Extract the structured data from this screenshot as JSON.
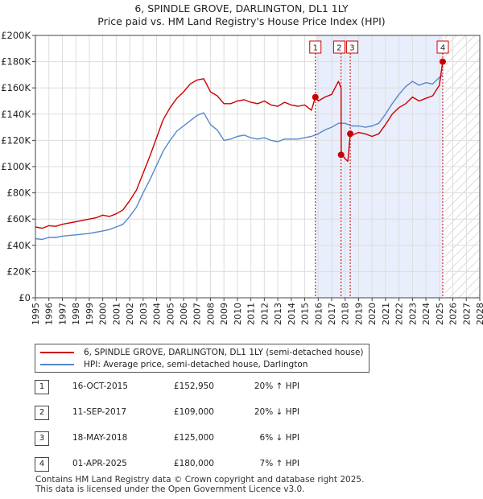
{
  "title_line1": "6, SPINDLE GROVE, DARLINGTON, DL1 1LY",
  "title_line2": "Price paid vs. HM Land Registry's House Price Index (HPI)",
  "chart_data": {
    "type": "line",
    "xlabel": "",
    "ylabel": "",
    "xlim": [
      1995,
      2028
    ],
    "ylim": [
      0,
      200000
    ],
    "y_ticks": [
      0,
      20000,
      40000,
      60000,
      80000,
      100000,
      120000,
      140000,
      160000,
      180000,
      200000
    ],
    "y_tick_labels": [
      "£0",
      "£20K",
      "£40K",
      "£60K",
      "£80K",
      "£100K",
      "£120K",
      "£140K",
      "£160K",
      "£180K",
      "£200K"
    ],
    "x_ticks": [
      1995,
      1996,
      1997,
      1998,
      1999,
      2000,
      2001,
      2002,
      2003,
      2004,
      2005,
      2006,
      2007,
      2008,
      2009,
      2010,
      2011,
      2012,
      2013,
      2014,
      2015,
      2016,
      2017,
      2018,
      2019,
      2020,
      2021,
      2022,
      2023,
      2024,
      2025,
      2026,
      2027,
      2028
    ],
    "x_tick_labels": [
      "1995",
      "1996",
      "1997",
      "1998",
      "1999",
      "2000",
      "2001",
      "2002",
      "2003",
      "2004",
      "2005",
      "2006",
      "2007",
      "2008",
      "2009",
      "2010",
      "2011",
      "2012",
      "2013",
      "2014",
      "2015",
      "2016",
      "2017",
      "2018",
      "2019",
      "2020",
      "2021",
      "2022",
      "2023",
      "2024",
      "2025",
      "2026",
      "2027",
      "2028"
    ],
    "grid": true,
    "shaded_period": [
      2015.79,
      2025.25
    ],
    "future_hatch_from": 2025.4,
    "series": [
      {
        "name": "6, SPINDLE GROVE, DARLINGTON, DL1 1LY (semi-detached house)",
        "color": "#cc0000",
        "x": [
          1995.0,
          1995.5,
          1996.0,
          1996.5,
          1997.0,
          1997.5,
          1998.0,
          1998.5,
          1999.0,
          1999.5,
          2000.0,
          2000.5,
          2001.0,
          2001.5,
          2002.0,
          2002.5,
          2003.0,
          2003.5,
          2004.0,
          2004.5,
          2005.0,
          2005.5,
          2006.0,
          2006.5,
          2007.0,
          2007.5,
          2008.0,
          2008.5,
          2009.0,
          2009.5,
          2010.0,
          2010.5,
          2011.0,
          2011.5,
          2012.0,
          2012.5,
          2013.0,
          2013.5,
          2014.0,
          2014.5,
          2015.0,
          2015.5,
          2015.79,
          2016.0,
          2016.5,
          2017.0,
          2017.5,
          2017.7,
          2017.71,
          2018.0,
          2018.2,
          2018.38,
          2018.5,
          2019.0,
          2019.5,
          2020.0,
          2020.5,
          2021.0,
          2021.5,
          2022.0,
          2022.5,
          2023.0,
          2023.5,
          2024.0,
          2024.5,
          2025.0,
          2025.25
        ],
        "values": [
          54000,
          53000,
          55000,
          54500,
          56000,
          57000,
          58000,
          59000,
          60000,
          61000,
          63000,
          62000,
          64000,
          67000,
          74000,
          82000,
          95000,
          108000,
          122000,
          136000,
          145000,
          152000,
          157000,
          163000,
          166000,
          167000,
          157000,
          154000,
          148000,
          148000,
          150000,
          151000,
          149000,
          148000,
          150000,
          147000,
          146000,
          149000,
          147000,
          146000,
          147000,
          143000,
          152950,
          150000,
          153000,
          155000,
          165000,
          160000,
          110000,
          106000,
          104000,
          125000,
          124000,
          126000,
          125000,
          123000,
          125000,
          132000,
          140000,
          145000,
          148000,
          153000,
          150000,
          152000,
          154000,
          162000,
          180000
        ]
      },
      {
        "name": "HPI: Average price, semi-detached house, Darlington",
        "color": "#5588cc",
        "x": [
          1995.0,
          1995.5,
          1996.0,
          1996.5,
          1997.0,
          1997.5,
          1998.0,
          1998.5,
          1999.0,
          1999.5,
          2000.0,
          2000.5,
          2001.0,
          2001.5,
          2002.0,
          2002.5,
          2003.0,
          2003.5,
          2004.0,
          2004.5,
          2005.0,
          2005.5,
          2006.0,
          2006.5,
          2007.0,
          2007.5,
          2008.0,
          2008.5,
          2009.0,
          2009.5,
          2010.0,
          2010.5,
          2011.0,
          2011.5,
          2012.0,
          2012.5,
          2013.0,
          2013.5,
          2014.0,
          2014.5,
          2015.0,
          2015.5,
          2016.0,
          2016.5,
          2017.0,
          2017.5,
          2018.0,
          2018.5,
          2019.0,
          2019.5,
          2020.0,
          2020.5,
          2021.0,
          2021.5,
          2022.0,
          2022.5,
          2023.0,
          2023.5,
          2024.0,
          2024.5,
          2025.0,
          2025.25
        ],
        "values": [
          45000,
          44500,
          46000,
          46000,
          47000,
          47500,
          48000,
          48500,
          49000,
          50000,
          51000,
          52000,
          54000,
          56000,
          62000,
          69000,
          80000,
          90000,
          101000,
          112000,
          120000,
          127000,
          131000,
          135000,
          139000,
          141000,
          132000,
          128000,
          120000,
          121000,
          123000,
          124000,
          122000,
          121000,
          122000,
          120000,
          119000,
          121000,
          121000,
          121000,
          122000,
          123000,
          125000,
          128000,
          130000,
          133000,
          133000,
          131000,
          131000,
          130000,
          131000,
          133000,
          140000,
          148000,
          155000,
          161000,
          165000,
          162000,
          164000,
          163000,
          168000,
          170000
        ]
      }
    ],
    "sale_points": [
      {
        "label": "1",
        "x": 2015.79,
        "value": 152950
      },
      {
        "label": "2",
        "x": 2017.7,
        "value": 109000
      },
      {
        "label": "3",
        "x": 2018.38,
        "value": 125000
      },
      {
        "label": "4",
        "x": 2025.25,
        "value": 180000
      }
    ]
  },
  "legend": {
    "price_paid": "6, SPINDLE GROVE, DARLINGTON, DL1 1LY (semi-detached house)",
    "hpi": "HPI: Average price, semi-detached house, Darlington"
  },
  "sales": [
    {
      "num": "1",
      "date": "16-OCT-2015",
      "price": "£152,950",
      "hpi": "20% ↑ HPI"
    },
    {
      "num": "2",
      "date": "11-SEP-2017",
      "price": "£109,000",
      "hpi": "20% ↓ HPI"
    },
    {
      "num": "3",
      "date": "18-MAY-2018",
      "price": "£125,000",
      "hpi": "6% ↓ HPI"
    },
    {
      "num": "4",
      "date": "01-APR-2025",
      "price": "£180,000",
      "hpi": "7% ↑ HPI"
    }
  ],
  "footer_line1": "Contains HM Land Registry data © Crown copyright and database right 2025.",
  "footer_line2": "This data is licensed under the Open Government Licence v3.0."
}
